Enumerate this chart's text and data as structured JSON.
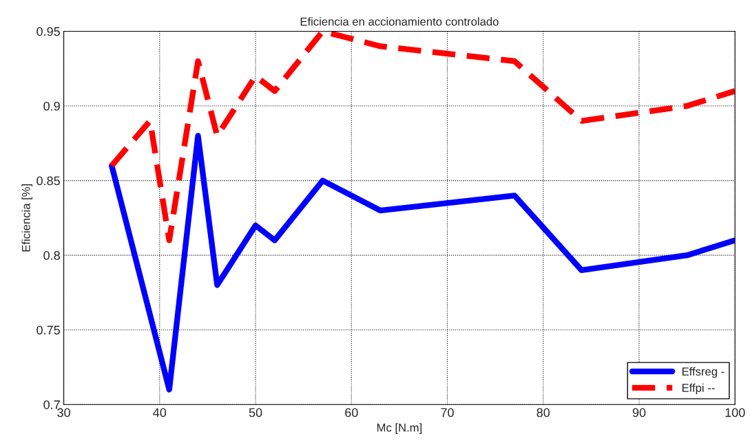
{
  "chart_data": {
    "type": "line",
    "title": "Eficiencia en accionamiento controlado",
    "xlabel": "Mc [N.m]",
    "ylabel": "Eficiencia [%]",
    "x": [
      35,
      41,
      44,
      46,
      50,
      52,
      57,
      63,
      77,
      84,
      95,
      100
    ],
    "series": [
      {
        "name": "Effsreg -",
        "color": "#0000ff",
        "line_style": "solid",
        "values": [
          0.86,
          0.71,
          0.88,
          0.78,
          0.82,
          0.81,
          0.85,
          0.83,
          0.84,
          0.79,
          0.8,
          0.81
        ]
      },
      {
        "name": "Effpi --",
        "color": "#ff0000",
        "line_style": "dashed",
        "x": [
          35,
          39,
          41,
          44,
          46,
          50,
          52,
          57,
          63,
          77,
          84,
          95,
          100
        ],
        "values": [
          0.86,
          0.89,
          0.81,
          0.93,
          0.88,
          0.92,
          0.91,
          0.95,
          0.94,
          0.93,
          0.89,
          0.9,
          0.91
        ]
      }
    ],
    "xlim": [
      30,
      100
    ],
    "xticks": [
      30,
      40,
      50,
      60,
      70,
      80,
      90,
      100
    ],
    "ylim": [
      0.7,
      0.95
    ],
    "yticks": [
      0.7,
      0.75,
      0.8,
      0.85,
      0.9,
      0.95
    ],
    "grid": true,
    "legend": "bottom right",
    "marker": "none"
  }
}
